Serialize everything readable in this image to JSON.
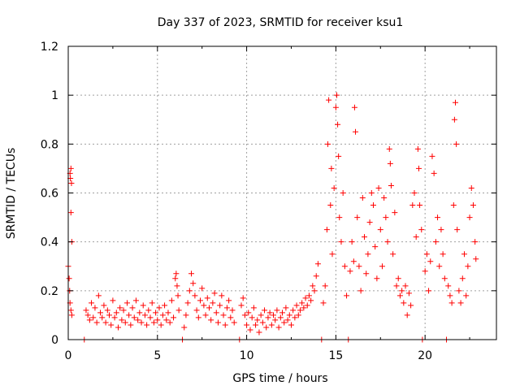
{
  "chart_data": {
    "type": "scatter",
    "title": "Day 337 of 2023, SRMTID for receiver ksu1",
    "xlabel": "GPS time / hours",
    "ylabel": "SRMTID / TECUs",
    "xlim": [
      0,
      24
    ],
    "ylim": [
      0,
      1.2
    ],
    "xticks": [
      0,
      5,
      10,
      15,
      20
    ],
    "yticks": [
      0,
      0.2,
      0.4,
      0.6,
      0.8,
      1,
      1.2
    ],
    "ytick_labels": [
      "0",
      "0.2",
      "0.4",
      "0.6",
      "0.8",
      "1",
      "1.2"
    ],
    "grid": true,
    "marker": "+",
    "color": "#ff0000",
    "series": [
      {
        "name": "SRMTID",
        "points": [
          [
            0.0,
            0.3
          ],
          [
            0.05,
            0.25
          ],
          [
            0.08,
            0.2
          ],
          [
            0.1,
            0.68
          ],
          [
            0.12,
            0.66
          ],
          [
            0.15,
            0.7
          ],
          [
            0.18,
            0.64
          ],
          [
            0.15,
            0.52
          ],
          [
            0.2,
            0.4
          ],
          [
            0.1,
            0.15
          ],
          [
            0.15,
            0.12
          ],
          [
            0.2,
            0.1
          ],
          [
            0.9,
            0.0
          ],
          [
            1.0,
            0.12
          ],
          [
            1.1,
            0.1
          ],
          [
            1.2,
            0.08
          ],
          [
            1.3,
            0.15
          ],
          [
            1.4,
            0.09
          ],
          [
            1.5,
            0.13
          ],
          [
            1.6,
            0.07
          ],
          [
            1.7,
            0.18
          ],
          [
            1.8,
            0.11
          ],
          [
            1.9,
            0.09
          ],
          [
            2.0,
            0.14
          ],
          [
            2.1,
            0.07
          ],
          [
            2.2,
            0.12
          ],
          [
            2.3,
            0.1
          ],
          [
            2.4,
            0.06
          ],
          [
            2.5,
            0.16
          ],
          [
            2.6,
            0.09
          ],
          [
            2.7,
            0.11
          ],
          [
            2.8,
            0.05
          ],
          [
            2.9,
            0.13
          ],
          [
            3.0,
            0.08
          ],
          [
            3.1,
            0.12
          ],
          [
            3.2,
            0.07
          ],
          [
            3.3,
            0.15
          ],
          [
            3.4,
            0.1
          ],
          [
            3.5,
            0.06
          ],
          [
            3.6,
            0.13
          ],
          [
            3.7,
            0.09
          ],
          [
            3.8,
            0.16
          ],
          [
            3.9,
            0.08
          ],
          [
            4.0,
            0.11
          ],
          [
            4.1,
            0.07
          ],
          [
            4.2,
            0.14
          ],
          [
            4.3,
            0.1
          ],
          [
            4.4,
            0.06
          ],
          [
            4.5,
            0.12
          ],
          [
            4.6,
            0.09
          ],
          [
            4.7,
            0.15
          ],
          [
            4.8,
            0.07
          ],
          [
            4.9,
            0.11
          ],
          [
            5.0,
            0.08
          ],
          [
            5.1,
            0.13
          ],
          [
            5.2,
            0.06
          ],
          [
            5.3,
            0.1
          ],
          [
            5.4,
            0.14
          ],
          [
            5.5,
            0.08
          ],
          [
            5.6,
            0.11
          ],
          [
            5.7,
            0.07
          ],
          [
            5.8,
            0.16
          ],
          [
            5.9,
            0.09
          ],
          [
            6.0,
            0.25
          ],
          [
            6.05,
            0.27
          ],
          [
            6.1,
            0.22
          ],
          [
            6.15,
            0.18
          ],
          [
            6.2,
            0.12
          ],
          [
            6.4,
            0.0
          ],
          [
            6.5,
            0.05
          ],
          [
            6.6,
            0.1
          ],
          [
            6.7,
            0.15
          ],
          [
            6.8,
            0.2
          ],
          [
            6.9,
            0.27
          ],
          [
            7.0,
            0.23
          ],
          [
            7.1,
            0.18
          ],
          [
            7.2,
            0.12
          ],
          [
            7.3,
            0.09
          ],
          [
            7.4,
            0.16
          ],
          [
            7.5,
            0.21
          ],
          [
            7.6,
            0.14
          ],
          [
            7.7,
            0.1
          ],
          [
            7.8,
            0.17
          ],
          [
            7.9,
            0.13
          ],
          [
            8.0,
            0.08
          ],
          [
            8.1,
            0.15
          ],
          [
            8.2,
            0.19
          ],
          [
            8.3,
            0.11
          ],
          [
            8.4,
            0.07
          ],
          [
            8.5,
            0.14
          ],
          [
            8.6,
            0.18
          ],
          [
            8.7,
            0.1
          ],
          [
            8.8,
            0.06
          ],
          [
            8.9,
            0.13
          ],
          [
            9.0,
            0.16
          ],
          [
            9.1,
            0.09
          ],
          [
            9.2,
            0.12
          ],
          [
            9.3,
            0.07
          ],
          [
            9.6,
            0.0
          ],
          [
            9.7,
            0.14
          ],
          [
            9.8,
            0.17
          ],
          [
            9.9,
            0.1
          ],
          [
            10.0,
            0.06
          ],
          [
            10.1,
            0.11
          ],
          [
            10.2,
            0.04
          ],
          [
            10.3,
            0.09
          ],
          [
            10.4,
            0.13
          ],
          [
            10.5,
            0.06
          ],
          [
            10.6,
            0.08
          ],
          [
            10.7,
            0.03
          ],
          [
            10.8,
            0.1
          ],
          [
            10.9,
            0.07
          ],
          [
            11.0,
            0.12
          ],
          [
            11.1,
            0.05
          ],
          [
            11.2,
            0.09
          ],
          [
            11.3,
            0.11
          ],
          [
            11.4,
            0.06
          ],
          [
            11.5,
            0.1
          ],
          [
            11.6,
            0.08
          ],
          [
            11.7,
            0.12
          ],
          [
            11.8,
            0.05
          ],
          [
            11.9,
            0.09
          ],
          [
            12.0,
            0.11
          ],
          [
            12.1,
            0.07
          ],
          [
            12.2,
            0.13
          ],
          [
            12.3,
            0.08
          ],
          [
            12.4,
            0.1
          ],
          [
            12.5,
            0.06
          ],
          [
            12.6,
            0.12
          ],
          [
            12.7,
            0.09
          ],
          [
            12.8,
            0.14
          ],
          [
            12.9,
            0.1
          ],
          [
            13.0,
            0.12
          ],
          [
            13.1,
            0.15
          ],
          [
            13.2,
            0.13
          ],
          [
            13.3,
            0.17
          ],
          [
            13.4,
            0.14
          ],
          [
            13.5,
            0.18
          ],
          [
            13.6,
            0.16
          ],
          [
            13.7,
            0.22
          ],
          [
            13.8,
            0.2
          ],
          [
            13.9,
            0.26
          ],
          [
            14.0,
            0.31
          ],
          [
            14.2,
            0.0
          ],
          [
            14.3,
            0.15
          ],
          [
            14.4,
            0.22
          ],
          [
            14.5,
            0.45
          ],
          [
            14.55,
            0.8
          ],
          [
            14.6,
            0.98
          ],
          [
            14.7,
            0.55
          ],
          [
            14.75,
            0.7
          ],
          [
            14.8,
            0.35
          ],
          [
            14.9,
            0.62
          ],
          [
            15.0,
            0.95
          ],
          [
            15.05,
            1.0
          ],
          [
            15.1,
            0.88
          ],
          [
            15.15,
            0.75
          ],
          [
            15.2,
            0.5
          ],
          [
            15.3,
            0.4
          ],
          [
            15.4,
            0.6
          ],
          [
            15.5,
            0.3
          ],
          [
            15.6,
            0.18
          ],
          [
            15.7,
            0.0
          ],
          [
            15.8,
            0.28
          ],
          [
            15.9,
            0.4
          ],
          [
            16.0,
            0.32
          ],
          [
            16.05,
            0.95
          ],
          [
            16.1,
            0.85
          ],
          [
            16.2,
            0.5
          ],
          [
            16.3,
            0.3
          ],
          [
            16.4,
            0.2
          ],
          [
            16.5,
            0.58
          ],
          [
            16.6,
            0.42
          ],
          [
            16.7,
            0.27
          ],
          [
            16.8,
            0.35
          ],
          [
            16.9,
            0.48
          ],
          [
            17.0,
            0.6
          ],
          [
            17.1,
            0.55
          ],
          [
            17.2,
            0.38
          ],
          [
            17.3,
            0.25
          ],
          [
            17.4,
            0.62
          ],
          [
            17.5,
            0.45
          ],
          [
            17.6,
            0.3
          ],
          [
            17.7,
            0.58
          ],
          [
            17.8,
            0.5
          ],
          [
            17.9,
            0.4
          ],
          [
            18.0,
            0.78
          ],
          [
            18.05,
            0.72
          ],
          [
            18.1,
            0.63
          ],
          [
            18.2,
            0.35
          ],
          [
            18.3,
            0.52
          ],
          [
            18.4,
            0.22
          ],
          [
            18.5,
            0.25
          ],
          [
            18.6,
            0.18
          ],
          [
            18.7,
            0.2
          ],
          [
            18.8,
            0.15
          ],
          [
            18.9,
            0.22
          ],
          [
            19.0,
            0.1
          ],
          [
            19.1,
            0.19
          ],
          [
            19.2,
            0.14
          ],
          [
            19.3,
            0.55
          ],
          [
            19.4,
            0.6
          ],
          [
            19.5,
            0.42
          ],
          [
            19.6,
            0.78
          ],
          [
            19.65,
            0.7
          ],
          [
            19.7,
            0.55
          ],
          [
            19.8,
            0.45
          ],
          [
            19.85,
            0.0
          ],
          [
            20.0,
            0.28
          ],
          [
            20.1,
            0.35
          ],
          [
            20.2,
            0.2
          ],
          [
            20.3,
            0.32
          ],
          [
            20.4,
            0.75
          ],
          [
            20.5,
            0.68
          ],
          [
            20.6,
            0.4
          ],
          [
            20.7,
            0.5
          ],
          [
            20.8,
            0.3
          ],
          [
            20.9,
            0.45
          ],
          [
            21.0,
            0.35
          ],
          [
            21.1,
            0.25
          ],
          [
            21.2,
            0.0
          ],
          [
            21.3,
            0.22
          ],
          [
            21.4,
            0.18
          ],
          [
            21.5,
            0.15
          ],
          [
            21.6,
            0.55
          ],
          [
            21.65,
            0.9
          ],
          [
            21.7,
            0.97
          ],
          [
            21.75,
            0.8
          ],
          [
            21.8,
            0.45
          ],
          [
            21.9,
            0.2
          ],
          [
            22.0,
            0.15
          ],
          [
            22.1,
            0.25
          ],
          [
            22.2,
            0.35
          ],
          [
            22.3,
            0.18
          ],
          [
            22.4,
            0.3
          ],
          [
            22.5,
            0.5
          ],
          [
            22.6,
            0.62
          ],
          [
            22.7,
            0.55
          ],
          [
            22.8,
            0.4
          ],
          [
            22.85,
            0.33
          ]
        ]
      }
    ]
  }
}
